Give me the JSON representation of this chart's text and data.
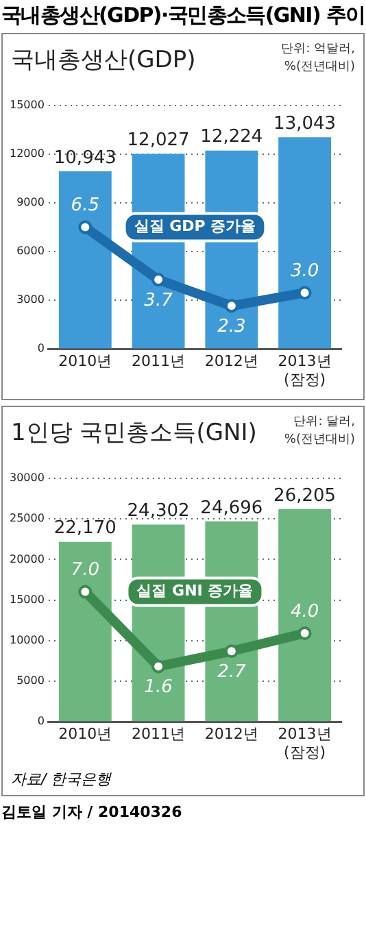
{
  "chart_data": [
    {
      "type": "bar",
      "title": "국내총생산(GDP)",
      "subtitle": "단위: 억달러,\n%(전년대비)",
      "categories": [
        "2010년",
        "2011년",
        "2012년",
        "2013년\n(잠정)"
      ],
      "series": [
        {
          "color": "#3f9ad8",
          "values": [
            10943,
            12027,
            12224,
            13043
          ],
          "value_labels": [
            "10,943",
            "12,027",
            "12,224",
            "13,043"
          ]
        },
        {
          "type": "line",
          "name": "실질 GDP 증가율",
          "color": "#1d6cab",
          "axis": "y2",
          "values": [
            6.5,
            3.7,
            2.3,
            3.0
          ],
          "value_labels": [
            "6.5",
            "3.7",
            "2.3",
            "3.0"
          ]
        }
      ],
      "ylim": [
        0,
        15000
      ],
      "yticks": [
        0,
        3000,
        6000,
        9000,
        12000,
        15000
      ],
      "y2lim": [
        0,
        13
      ],
      "grid": "y",
      "marker": "circle",
      "annotations": [
        "국내총생산(GDP)·국민총소득(GNI) 추이"
      ]
    },
    {
      "type": "bar",
      "title": "1인당 국민총소득(GNI)",
      "subtitle": "단위: 달러,\n%(전년대비)",
      "categories": [
        "2010년",
        "2011년",
        "2012년",
        "2013년\n(잠정)"
      ],
      "series": [
        {
          "color": "#6cb67f",
          "values": [
            22170,
            24302,
            24696,
            26205
          ],
          "value_labels": [
            "22,170",
            "24,302",
            "24,696",
            "26,205"
          ]
        },
        {
          "type": "line",
          "name": "실질 GNI 증가율",
          "color": "#3d8a4e",
          "axis": "y2",
          "values": [
            7.0,
            1.6,
            2.7,
            4.0
          ],
          "value_labels": [
            "7.0",
            "1.6",
            "2.7",
            "4.0"
          ]
        }
      ],
      "ylim": [
        0,
        30000
      ],
      "yticks": [
        0,
        5000,
        10000,
        15000,
        20000,
        25000,
        30000
      ],
      "y2lim": [
        -2.4,
        15.2
      ],
      "grid": "y",
      "marker": "circle",
      "annotations": [
        "자료/ 한국은행",
        "김토일 기자 / 20140326"
      ]
    }
  ]
}
